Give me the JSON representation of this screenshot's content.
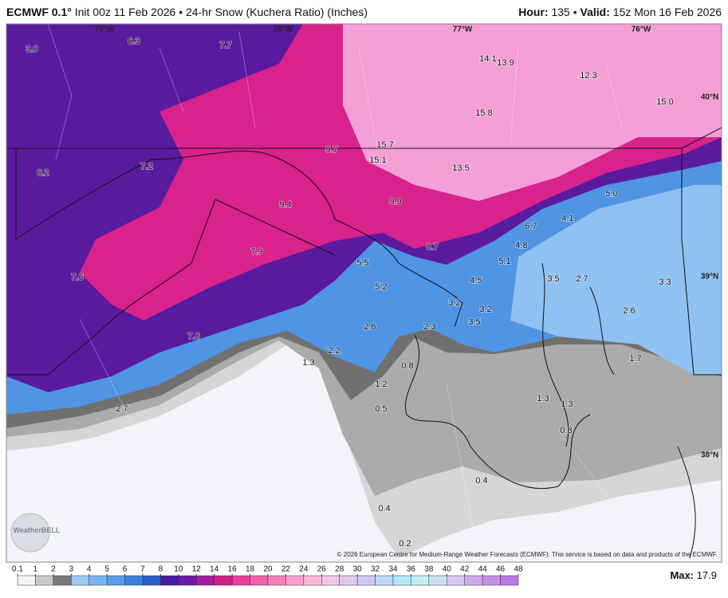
{
  "header": {
    "model": "ECMWF 0.1°",
    "description": "Init 00z 11 Feb 2026 • 24-hr Snow (Kuchera Ratio) (Inches)",
    "hour_label": "Hour:",
    "hour": "135",
    "separator": "•",
    "valid_label": "Valid:",
    "valid": "15z Mon 16 Feb 2026"
  },
  "map": {
    "longitudes": [
      "79°W",
      "78°W",
      "77°W",
      "76°W"
    ],
    "latitudes": [
      "40°N",
      "39°N",
      "38°N"
    ],
    "values": [
      "3.0",
      "6.3",
      "7.7",
      "14.1",
      "13.9",
      "12.3",
      "15.8",
      "15.0",
      "9.7",
      "15.7",
      "15.1",
      "6.2",
      "7.2",
      "13.5",
      "9.4",
      "9.9",
      "5.0",
      "4.1",
      "6.7",
      "4.8",
      "7.9",
      "8.7",
      "5.5",
      "5.1",
      "7.6",
      "4.5",
      "3.5",
      "2.7",
      "3.3",
      "5.2",
      "3.2",
      "3.2",
      "2.6",
      "3.5",
      "2.6",
      "2.3",
      "7.6",
      "2.2",
      "1.3",
      "1.7",
      "0.8",
      "1.2",
      "1.3",
      "1.3",
      "2.7",
      "0.5",
      "0.8",
      "0.4",
      "0.4",
      "0.2"
    ],
    "logo": "WeatherBELL",
    "copyright": "© 2026 European Centre for Medium-Range Weather Forecasts (ECMWF). This service is based on data and products of the ECMWF."
  },
  "legend": {
    "ticks": [
      0.1,
      1,
      2,
      3,
      4,
      5,
      6,
      7,
      8,
      10,
      12,
      14,
      16,
      18,
      20,
      22,
      24,
      26,
      28,
      30,
      32,
      34,
      36,
      38,
      40,
      42,
      44,
      46,
      48
    ],
    "max_label": "Max:",
    "max": "17.9"
  }
}
